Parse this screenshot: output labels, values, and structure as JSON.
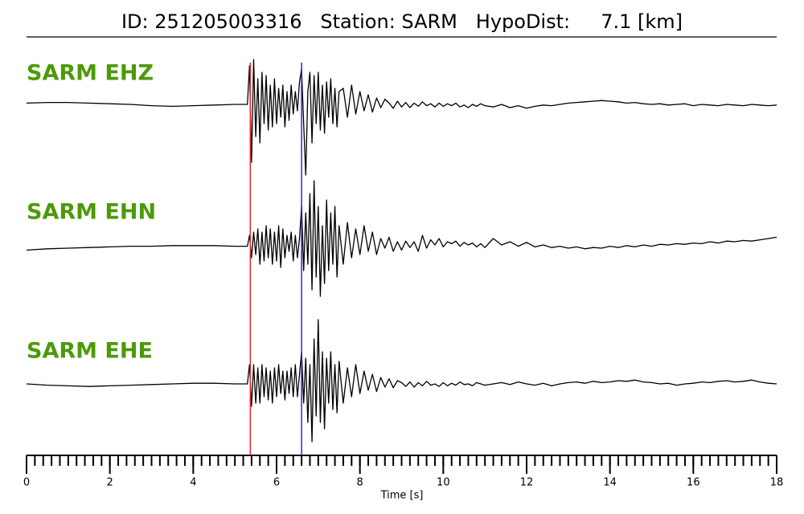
{
  "chart_data": {
    "type": "line",
    "title": "ID: 251205003316   Station: SARM   HypoDist:     7.1 [km]",
    "xlabel": "Time [s]",
    "xlim": [
      0,
      18
    ],
    "xticks": [
      0,
      2,
      4,
      6,
      8,
      10,
      12,
      14,
      16,
      18
    ],
    "xminor_step": 0.2,
    "ylim": [
      -1,
      1
    ],
    "label_color": "#4c9a0a",
    "markers": [
      {
        "x": 5.37,
        "color": "#e8262a"
      },
      {
        "x": 6.6,
        "color": "#2727d6"
      }
    ],
    "x": [
      0,
      0.5,
      1,
      1.5,
      2,
      2.5,
      3,
      3.5,
      4,
      4.5,
      5,
      5.3,
      5.35,
      5.4,
      5.45,
      5.5,
      5.55,
      5.6,
      5.65,
      5.7,
      5.75,
      5.8,
      5.85,
      5.9,
      5.95,
      6,
      6.05,
      6.1,
      6.15,
      6.2,
      6.25,
      6.3,
      6.35,
      6.4,
      6.45,
      6.5,
      6.55,
      6.6,
      6.65,
      6.7,
      6.75,
      6.8,
      6.85,
      6.9,
      6.95,
      7,
      7.05,
      7.1,
      7.15,
      7.2,
      7.25,
      7.3,
      7.35,
      7.4,
      7.45,
      7.5,
      7.6,
      7.7,
      7.8,
      7.9,
      8,
      8.1,
      8.2,
      8.3,
      8.4,
      8.5,
      8.6,
      8.7,
      8.8,
      8.9,
      9,
      9.1,
      9.2,
      9.3,
      9.4,
      9.5,
      9.6,
      9.7,
      9.8,
      9.9,
      10,
      10.1,
      10.2,
      10.3,
      10.4,
      10.5,
      10.6,
      10.7,
      10.8,
      10.9,
      11,
      11.2,
      11.4,
      11.6,
      11.8,
      12,
      12.2,
      12.4,
      12.6,
      12.8,
      13,
      13.2,
      13.4,
      13.6,
      13.8,
      14,
      14.2,
      14.4,
      14.6,
      14.8,
      15,
      15.2,
      15.4,
      15.6,
      15.8,
      16,
      16.2,
      16.4,
      16.6,
      16.8,
      17,
      17.2,
      17.4,
      17.6,
      17.8,
      18
    ],
    "series": [
      {
        "name": "SARM EHZ",
        "color": "#000000",
        "values": [
          0.02,
          0.03,
          0.03,
          0.02,
          0.01,
          0,
          -0.02,
          -0.03,
          -0.02,
          -0.01,
          0,
          0,
          0.6,
          -0.9,
          0.7,
          -0.5,
          0.4,
          -0.6,
          0.5,
          -0.3,
          0.45,
          -0.4,
          0.3,
          -0.35,
          0.4,
          -0.3,
          0.25,
          -0.2,
          0.3,
          -0.35,
          0.2,
          -0.25,
          0.3,
          -0.15,
          0.2,
          -0.1,
          0.35,
          0.55,
          -0.3,
          -1.1,
          0.2,
          0.5,
          -0.6,
          0.45,
          -0.3,
          0.5,
          -0.4,
          0.3,
          -0.45,
          0.35,
          -0.2,
          0.4,
          -0.3,
          0.25,
          -0.35,
          0.2,
          0.25,
          -0.2,
          0.3,
          -0.15,
          0.2,
          -0.1,
          0.15,
          -0.12,
          0.1,
          -0.05,
          0.08,
          0.02,
          -0.06,
          0.05,
          -0.04,
          0.03,
          -0.05,
          0.02,
          -0.03,
          0.04,
          -0.02,
          0.01,
          -0.04,
          0.02,
          -0.03,
          0.01,
          -0.02,
          0.02,
          -0.04,
          -0.01,
          -0.05,
          0,
          -0.03,
          0.01,
          -0.02,
          -0.04,
          0,
          -0.05,
          -0.02,
          -0.06,
          -0.03,
          -0.01,
          -0.02,
          0,
          0.02,
          0.03,
          0.04,
          0.05,
          0.06,
          0.05,
          0.04,
          0.02,
          0.03,
          0.01,
          0,
          0.01,
          -0.01,
          0,
          0.01,
          -0.02,
          0,
          -0.01,
          -0.02,
          0,
          -0.01,
          -0.02,
          0,
          -0.01,
          -0.02,
          -0.01
        ]
      },
      {
        "name": "SARM EHN",
        "color": "#000000",
        "values": [
          -0.08,
          -0.06,
          -0.05,
          -0.04,
          -0.03,
          -0.02,
          -0.02,
          -0.01,
          -0.01,
          -0.01,
          -0.02,
          -0.02,
          0.15,
          -0.2,
          0.2,
          -0.15,
          0.25,
          -0.3,
          0.2,
          -0.25,
          0.3,
          -0.2,
          0.25,
          -0.3,
          0.2,
          -0.25,
          0.3,
          -0.35,
          0.25,
          -0.2,
          0.15,
          -0.1,
          0.2,
          -0.25,
          0.15,
          -0.2,
          0.1,
          0.6,
          -0.4,
          0.5,
          -0.3,
          0.8,
          -0.7,
          1.0,
          -0.5,
          0.6,
          -0.8,
          0.3,
          -0.6,
          0.7,
          -0.4,
          0.5,
          -0.3,
          0.6,
          -0.5,
          0.3,
          -0.3,
          0.35,
          -0.2,
          0.25,
          -0.15,
          0.3,
          -0.1,
          0.2,
          -0.15,
          0.1,
          -0.05,
          0.12,
          -0.1,
          0.05,
          -0.08,
          0.06,
          -0.04,
          0.05,
          -0.1,
          0.15,
          -0.05,
          0.08,
          0,
          0.1,
          -0.03,
          0.05,
          0.02,
          0.06,
          -0.02,
          0.04,
          0,
          0.03,
          -0.03,
          0.02,
          -0.04,
          0.1,
          0,
          0.05,
          -0.02,
          0.04,
          -0.03,
          0,
          -0.04,
          -0.02,
          -0.05,
          -0.03,
          -0.06,
          -0.04,
          -0.05,
          -0.02,
          -0.04,
          -0.01,
          -0.03,
          0,
          -0.02,
          0.01,
          0,
          0.02,
          0.01,
          0.03,
          0.02,
          0.05,
          0.03,
          0.06,
          0.05,
          0.07,
          0.06,
          0.08,
          0.1,
          0.12
        ]
      },
      {
        "name": "SARM EHE",
        "color": "#000000",
        "values": [
          0,
          -0.02,
          -0.03,
          -0.04,
          -0.03,
          -0.02,
          -0.01,
          0,
          0.01,
          0.01,
          0,
          0,
          0.3,
          -0.35,
          0.3,
          -0.3,
          0.25,
          -0.3,
          0.3,
          -0.2,
          0.25,
          -0.25,
          0.2,
          -0.3,
          0.25,
          -0.2,
          0.3,
          -0.15,
          0.2,
          -0.25,
          0.2,
          -0.15,
          0.25,
          -0.2,
          0.3,
          -0.2,
          0.15,
          0.5,
          -0.3,
          0.4,
          -0.6,
          0.3,
          -0.9,
          0.7,
          -0.5,
          1.0,
          -0.6,
          0.5,
          -0.7,
          0.4,
          -0.3,
          0.5,
          -0.4,
          0.3,
          -0.45,
          0.35,
          -0.3,
          0.25,
          -0.2,
          0.3,
          -0.15,
          0.2,
          -0.1,
          0.15,
          -0.12,
          0.1,
          -0.05,
          0.08,
          -0.06,
          0.05,
          0.02,
          -0.04,
          0.03,
          -0.05,
          0.02,
          -0.03,
          0.04,
          -0.02,
          0,
          -0.04,
          0.02,
          -0.03,
          0.01,
          -0.02,
          0.03,
          -0.01,
          0,
          -0.03,
          0.02,
          0,
          -0.02,
          0,
          0.02,
          -0.01,
          0.03,
          0,
          -0.02,
          0.01,
          -0.03,
          0,
          0.02,
          0.03,
          0.01,
          0.04,
          0.02,
          0.03,
          0.05,
          0.04,
          0.06,
          0.03,
          0.02,
          0,
          0.01,
          -0.02,
          0,
          0.01,
          0.03,
          0.02,
          0.04,
          0.05,
          0.03,
          0.04,
          0.06,
          0.03,
          0.01,
          0
        ]
      }
    ]
  }
}
